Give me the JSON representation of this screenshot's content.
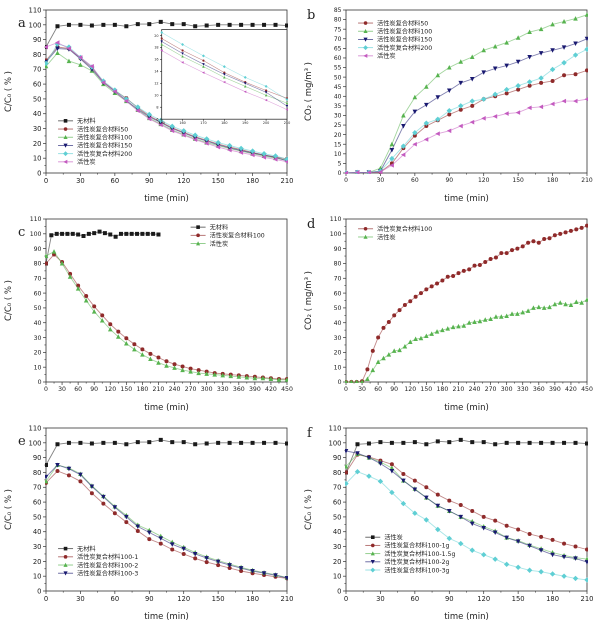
{
  "figure": {
    "panels": [
      "a",
      "b",
      "c",
      "d",
      "e",
      "f"
    ]
  },
  "charts": [
    {
      "id": "a",
      "label": "a",
      "type": "line",
      "xlabel": "time (min)",
      "ylabel": "C/C₀ ( % )",
      "xlim": [
        0,
        210
      ],
      "xstep": 30,
      "xminor": 15,
      "ylim": [
        0,
        110
      ],
      "ystep": 10,
      "yminor": 5,
      "tf": 6.8,
      "legend": {
        "fx": 0.05,
        "fy": 0.68
      },
      "x": [
        0,
        10,
        20,
        30,
        40,
        50,
        60,
        70,
        80,
        90,
        100,
        110,
        120,
        130,
        140,
        150,
        160,
        170,
        180,
        190,
        200,
        210
      ],
      "series": [
        {
          "name": "无材料",
          "color": "#1a1a1a",
          "marker": "square",
          "y": [
            85,
            99,
            100,
            100,
            99.5,
            100,
            100,
            99,
            100.5,
            100.5,
            102,
            100.5,
            100.5,
            99,
            99.5,
            100,
            100,
            100,
            100,
            100,
            100,
            99.5
          ]
        },
        {
          "name": "活性炭复合材料50",
          "color": "#8f2a2a",
          "marker": "circle",
          "y": [
            76,
            85,
            84,
            77.5,
            71,
            61.5,
            55.5,
            50.5,
            44,
            38.5,
            34.5,
            30.5,
            27.5,
            24.5,
            22,
            19.5,
            17.5,
            15.8,
            13.8,
            12.2,
            10.8,
            9.5
          ]
        },
        {
          "name": "活性炭复合材料100",
          "color": "#57b34f",
          "marker": "triangle-up",
          "y": [
            72,
            81,
            75.5,
            73,
            69,
            60,
            54,
            48.5,
            42.5,
            37,
            33,
            29,
            26,
            23,
            20.5,
            18.5,
            16.5,
            14.8,
            13,
            11.5,
            10,
            8.7
          ]
        },
        {
          "name": "活性炭复合材料150",
          "color": "#191970",
          "marker": "triangle-down",
          "y": [
            75,
            84,
            83.5,
            77,
            70,
            61,
            55,
            49,
            43,
            38,
            34,
            30,
            27,
            24,
            21.5,
            19,
            17,
            15.2,
            13.5,
            12,
            10.5,
            8.2
          ]
        },
        {
          "name": "活性炭复合材料200",
          "color": "#5fcfd4",
          "marker": "diamond",
          "y": [
            74,
            87,
            85,
            78,
            71.5,
            62,
            56,
            50,
            44.5,
            39.5,
            35.5,
            31.5,
            28.5,
            25.5,
            23,
            20.5,
            18.5,
            16.6,
            14.8,
            13,
            11.5,
            9.3
          ]
        },
        {
          "name": "活性炭",
          "color": "#c45bc0",
          "marker": "triangle-left",
          "y": [
            85,
            88,
            84,
            78,
            72,
            61,
            55,
            48.5,
            42,
            36.5,
            32.5,
            28.5,
            25.5,
            22.5,
            20,
            17.5,
            15.5,
            13.8,
            12.2,
            10.6,
            9.2,
            7.6
          ]
        }
      ],
      "inset": {
        "fx": 0.48,
        "fy": 0.12,
        "fw": 0.52,
        "fh": 0.55,
        "xlim": [
          150,
          210
        ],
        "xstep": 10,
        "ylim": [
          6,
          21
        ],
        "ystep": 2,
        "idx": [
          1,
          2,
          3,
          4,
          5
        ]
      }
    },
    {
      "id": "b",
      "label": "b",
      "type": "line",
      "xlabel": "time (min)",
      "ylabel": "CO₂ ( mg/m³ )",
      "xlim": [
        0,
        210
      ],
      "xstep": 30,
      "xminor": 15,
      "ylim": [
        0,
        85
      ],
      "ystep": 5,
      "tf": 6.0,
      "legend": {
        "fx": 0.05,
        "fy": 0.08
      },
      "x": [
        0,
        10,
        20,
        30,
        40,
        50,
        60,
        70,
        80,
        90,
        100,
        110,
        120,
        130,
        140,
        150,
        160,
        170,
        180,
        190,
        200,
        210
      ],
      "series": [
        {
          "name": "活性炭复合材料50",
          "color": "#8f2a2a",
          "marker": "circle",
          "y": [
            0,
            0.3,
            0.3,
            0.5,
            5,
            13,
            19.5,
            24.5,
            27.5,
            30.5,
            33,
            35,
            38.5,
            40,
            41.5,
            43.5,
            45.5,
            47,
            48,
            51,
            51.5,
            53.5
          ]
        },
        {
          "name": "活性炭复合材料100",
          "color": "#57b34f",
          "marker": "triangle-up",
          "y": [
            0,
            0.3,
            0.3,
            2.5,
            15,
            30,
            39.5,
            45,
            51,
            55,
            58,
            60.5,
            64,
            66,
            68,
            70.5,
            73.5,
            75,
            77.5,
            79,
            80.5,
            82.5
          ]
        },
        {
          "name": "活性炭复合材料150",
          "color": "#191970",
          "marker": "triangle-down",
          "y": [
            0,
            0.3,
            0.3,
            1,
            12,
            24.5,
            32,
            35.5,
            39.5,
            43,
            47,
            49,
            52.5,
            54.5,
            56,
            58,
            60.5,
            62.5,
            64,
            65.5,
            67.5,
            70
          ]
        },
        {
          "name": "活性炭复合材料200",
          "color": "#5fcfd4",
          "marker": "diamond",
          "y": [
            0,
            0.3,
            0.3,
            1,
            7.5,
            14,
            21,
            26,
            28,
            32.5,
            35,
            37.5,
            38.5,
            41,
            43.5,
            45.5,
            47.5,
            49.5,
            54,
            57.5,
            61.5,
            64.5
          ]
        },
        {
          "name": "活性炭",
          "color": "#c45bc0",
          "marker": "triangle-left",
          "y": [
            0,
            0.3,
            0.3,
            0.5,
            4,
            9.5,
            15,
            17.5,
            20.5,
            22,
            24.5,
            26.5,
            28.5,
            29.5,
            31,
            31.5,
            34,
            34.5,
            36,
            37.5,
            37.5,
            38.5
          ]
        }
      ]
    },
    {
      "id": "c",
      "label": "c",
      "type": "line",
      "xlabel": "time (min)",
      "ylabel": "C/C₀ ( % )",
      "xlim": [
        0,
        450
      ],
      "xstep": 30,
      "xminor": 15,
      "ylim": [
        0,
        110
      ],
      "ystep": 10,
      "yminor": 5,
      "tf": 6.2,
      "legend": {
        "fx": 0.6,
        "fy": 0.05
      },
      "x": [
        0,
        15,
        30,
        45,
        60,
        75,
        90,
        105,
        120,
        135,
        150,
        165,
        180,
        195,
        210,
        225,
        240,
        255,
        270,
        285,
        300,
        315,
        330,
        345,
        360,
        375,
        390,
        405,
        420,
        435,
        450
      ],
      "series": [
        {
          "name": "无材料",
          "color": "#1a1a1a",
          "marker": "square",
          "x": [
            0,
            10,
            20,
            30,
            40,
            50,
            60,
            70,
            80,
            90,
            100,
            110,
            120,
            130,
            140,
            150,
            160,
            170,
            180,
            190,
            200,
            210
          ],
          "y": [
            80,
            99,
            100,
            100,
            100,
            100,
            99.5,
            98.5,
            100,
            100.5,
            101.5,
            100.5,
            99.5,
            98,
            100,
            100,
            100,
            100,
            100,
            100,
            100,
            99.5
          ]
        },
        {
          "name": "活性炭复合材料100",
          "color": "#8f2a2a",
          "marker": "circle",
          "y": [
            80,
            86,
            81,
            73,
            65,
            58,
            51,
            45,
            39,
            34,
            29.5,
            25.5,
            22,
            19,
            16.5,
            14,
            12,
            10.5,
            9,
            8,
            7,
            6,
            5.5,
            5,
            4.5,
            4,
            3.5,
            3,
            2.5,
            2,
            2
          ]
        },
        {
          "name": "活性炭",
          "color": "#57b34f",
          "marker": "triangle-up",
          "y": [
            85,
            88,
            80,
            71,
            63,
            55,
            47.5,
            41.5,
            35.5,
            30.5,
            26,
            22,
            18.5,
            15.5,
            13,
            11,
            9.5,
            8,
            7,
            6,
            5.5,
            5,
            4.5,
            4,
            3.5,
            3,
            2.5,
            2.5,
            2,
            1.5,
            1.5
          ]
        }
      ]
    },
    {
      "id": "d",
      "label": "d",
      "type": "line",
      "xlabel": "time (min)",
      "ylabel": "CO₂ ( mg/m³ )",
      "xlim": [
        0,
        450
      ],
      "xstep": 30,
      "xminor": 15,
      "ylim": [
        0,
        110
      ],
      "ystep": 10,
      "yminor": 5,
      "tf": 6.2,
      "legend": {
        "fx": 0.05,
        "fy": 0.06
      },
      "x": [
        0,
        10,
        20,
        30,
        40,
        50,
        60,
        70,
        80,
        90,
        100,
        110,
        120,
        130,
        140,
        150,
        160,
        170,
        180,
        190,
        200,
        210,
        220,
        230,
        240,
        250,
        260,
        270,
        280,
        290,
        300,
        310,
        320,
        330,
        340,
        350,
        360,
        370,
        380,
        390,
        400,
        410,
        420,
        430,
        440,
        450
      ],
      "series": [
        {
          "name": "活性炭复合材料100",
          "color": "#8f2a2a",
          "marker": "circle",
          "y": [
            0,
            0,
            0,
            0.5,
            8.5,
            21,
            30,
            36.5,
            40.5,
            45,
            48.5,
            52,
            54.5,
            57.5,
            60,
            62.5,
            64.5,
            66.5,
            68.5,
            71,
            71.5,
            73.5,
            75,
            76,
            78.5,
            79,
            81,
            83,
            84,
            87,
            87,
            89,
            90,
            91.5,
            94,
            95,
            94,
            96.5,
            97,
            99,
            100,
            101,
            102,
            103,
            104,
            105.5
          ]
        },
        {
          "name": "活性炭",
          "color": "#57b34f",
          "marker": "triangle-up",
          "y": [
            0,
            0,
            0,
            0,
            2,
            8,
            13.5,
            16,
            18.5,
            21,
            21.5,
            24,
            27,
            29,
            29.5,
            31,
            32.5,
            34,
            35,
            36,
            37,
            37.5,
            38,
            40,
            40.5,
            41,
            42,
            42.5,
            44,
            44,
            44.5,
            46,
            46,
            47,
            48,
            50,
            50.5,
            50,
            50.5,
            52.5,
            53.5,
            52.5,
            52,
            54,
            53.5,
            55.5
          ]
        }
      ]
    },
    {
      "id": "e",
      "label": "e",
      "type": "line",
      "xlabel": "time (min)",
      "ylabel": "C/C₀ ( % )",
      "xlim": [
        0,
        210
      ],
      "xstep": 30,
      "xminor": 15,
      "ylim": [
        0,
        110
      ],
      "ystep": 10,
      "yminor": 5,
      "tf": 6.8,
      "legend": {
        "fx": 0.05,
        "fy": 0.74
      },
      "x": [
        0,
        10,
        20,
        30,
        40,
        50,
        60,
        70,
        80,
        90,
        100,
        110,
        120,
        130,
        140,
        150,
        160,
        170,
        180,
        190,
        200,
        210
      ],
      "series": [
        {
          "name": "无材料",
          "color": "#1a1a1a",
          "marker": "square",
          "y": [
            85,
            99,
            100,
            100,
            99.5,
            100,
            100,
            99,
            100.5,
            100.5,
            102,
            100.5,
            100.5,
            99,
            99.5,
            100,
            100,
            100,
            100,
            100,
            100,
            99.5
          ]
        },
        {
          "name": "活性炭复合材料100-1",
          "color": "#8f2a2a",
          "marker": "circle",
          "y": [
            73,
            81,
            78,
            74,
            66,
            59,
            52.5,
            46.5,
            40.5,
            35,
            32,
            28,
            25,
            22,
            19.5,
            17.5,
            15.5,
            13.5,
            12,
            10.8,
            9.6,
            8.5
          ]
        },
        {
          "name": "活性炭复合材料100-2",
          "color": "#57b34f",
          "marker": "triangle-up",
          "y": [
            74,
            85,
            83,
            79,
            71,
            64,
            57,
            51,
            44.5,
            41,
            37,
            33,
            29.5,
            26,
            23,
            20.5,
            18.2,
            16,
            14,
            12.4,
            11,
            9
          ]
        },
        {
          "name": "活性炭复合材料100-3",
          "color": "#191970",
          "marker": "triangle-down",
          "y": [
            77,
            85,
            82.5,
            78.5,
            70.5,
            63.5,
            56.5,
            50,
            43.5,
            39.5,
            35.5,
            31.5,
            28.5,
            25,
            22.2,
            19.8,
            17.5,
            15.4,
            13.5,
            12,
            10.6,
            8.8
          ]
        }
      ]
    },
    {
      "id": "f",
      "label": "f",
      "type": "line",
      "xlabel": "time (min)",
      "ylabel": "C/C₀ ( % )",
      "xlim": [
        0,
        210
      ],
      "xstep": 30,
      "xminor": 15,
      "ylim": [
        0,
        110
      ],
      "ystep": 10,
      "yminor": 5,
      "tf": 6.8,
      "legend": {
        "fx": 0.08,
        "fy": 0.67
      },
      "x": [
        0,
        10,
        20,
        30,
        40,
        50,
        60,
        70,
        80,
        90,
        100,
        110,
        120,
        130,
        140,
        150,
        160,
        170,
        180,
        190,
        200,
        210
      ],
      "series": [
        {
          "name": "活性炭",
          "color": "#1a1a1a",
          "marker": "square",
          "y": [
            80,
            99,
            99.5,
            100.5,
            100,
            100,
            100.5,
            99,
            101,
            100.5,
            102,
            100.5,
            100.5,
            99,
            100,
            100,
            100,
            100,
            100,
            100,
            100,
            99.5
          ]
        },
        {
          "name": "活性炭复合材料100-1g",
          "color": "#8f2a2a",
          "marker": "circle",
          "y": [
            80,
            92,
            90.5,
            88,
            85.5,
            79,
            74.5,
            70,
            65,
            61,
            58,
            54,
            50,
            47.5,
            44,
            41.5,
            38.5,
            36.5,
            34.5,
            32,
            30,
            28
          ]
        },
        {
          "name": "活性炭复合材料100-1.5g",
          "color": "#57b34f",
          "marker": "triangle-up",
          "y": [
            84,
            92.5,
            90,
            87,
            83,
            74.5,
            69,
            63,
            57.5,
            54,
            50,
            47,
            43.5,
            40.5,
            36,
            34,
            31,
            28.5,
            26,
            24,
            22.5,
            21.5
          ]
        },
        {
          "name": "活性炭复合材料100-2g",
          "color": "#191970",
          "marker": "triangle-down",
          "y": [
            94.5,
            93,
            90,
            86,
            81,
            74.5,
            68.5,
            63,
            57.5,
            54,
            50,
            45.5,
            42.5,
            39.5,
            36,
            33.5,
            30.5,
            27.5,
            24.5,
            23,
            22,
            19.5
          ]
        },
        {
          "name": "活性炭复合材料100-3g",
          "color": "#5fcfd4",
          "marker": "diamond",
          "y": [
            72.5,
            80.5,
            77.5,
            74,
            66.5,
            59,
            52.5,
            48,
            41.5,
            35.5,
            32,
            27.5,
            24.5,
            21.5,
            18,
            16,
            14,
            13,
            11.5,
            10,
            8.5,
            7.5
          ]
        }
      ]
    }
  ]
}
